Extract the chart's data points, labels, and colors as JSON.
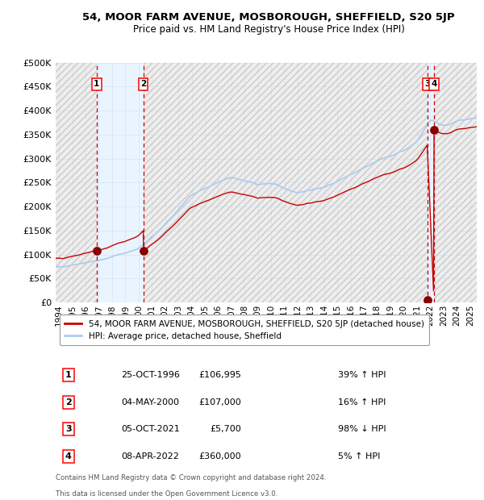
{
  "title": "54, MOOR FARM AVENUE, MOSBOROUGH, SHEFFIELD, S20 5JP",
  "subtitle": "Price paid vs. HM Land Registry's House Price Index (HPI)",
  "hpi_label": "HPI: Average price, detached house, Sheffield",
  "property_label": "54, MOOR FARM AVENUE, MOSBOROUGH, SHEFFIELD, S20 5JP (detached house)",
  "footer1": "Contains HM Land Registry data © Crown copyright and database right 2024.",
  "footer2": "This data is licensed under the Open Government Licence v3.0.",
  "ylim": [
    0,
    500000
  ],
  "yticks": [
    0,
    50000,
    100000,
    150000,
    200000,
    250000,
    300000,
    350000,
    400000,
    450000,
    500000
  ],
  "ytick_labels": [
    "£0",
    "£50K",
    "£100K",
    "£150K",
    "£200K",
    "£250K",
    "£300K",
    "£350K",
    "£400K",
    "£450K",
    "£500K"
  ],
  "xlim_start": 1993.75,
  "xlim_end": 2025.5,
  "xticks": [
    1994,
    1995,
    1996,
    1997,
    1998,
    1999,
    2000,
    2001,
    2002,
    2003,
    2004,
    2005,
    2006,
    2007,
    2008,
    2009,
    2010,
    2011,
    2012,
    2013,
    2014,
    2015,
    2016,
    2017,
    2018,
    2019,
    2020,
    2021,
    2022,
    2023,
    2024,
    2025
  ],
  "sale_dates": [
    1996.83,
    2000.35,
    2021.77,
    2022.27
  ],
  "sale_prices": [
    106995,
    107000,
    5700,
    360000
  ],
  "sale_labels": [
    "1",
    "2",
    "3",
    "4"
  ],
  "table_rows": [
    [
      "1",
      "25-OCT-1996",
      "£106,995",
      "39% ↑ HPI"
    ],
    [
      "2",
      "04-MAY-2000",
      "£107,000",
      "16% ↑ HPI"
    ],
    [
      "3",
      "05-OCT-2021",
      "£5,700",
      "98% ↓ HPI"
    ],
    [
      "4",
      "08-APR-2022",
      "£360,000",
      "5% ↑ HPI"
    ]
  ],
  "line_color_property": "#cc0000",
  "line_color_hpi": "#aaccee",
  "dot_color": "#880000",
  "vline_color": "#cc0000",
  "shade_color": "#ddeeff",
  "grid_color": "#ccddee",
  "background_color": "#ffffff"
}
